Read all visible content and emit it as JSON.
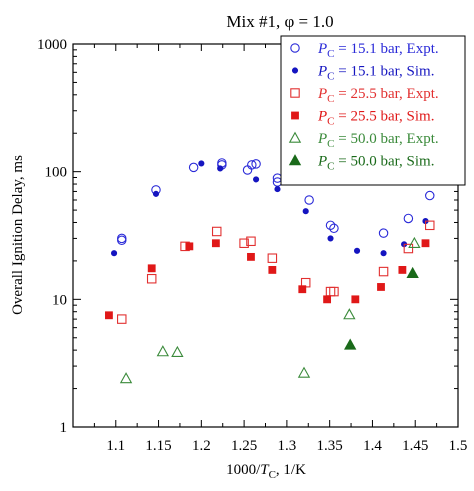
{
  "chart_data": {
    "type": "scatter",
    "title": "Mix #1, φ = 1.0",
    "xlabel": {
      "prefix": "1000/",
      "var": "T",
      "sub": "C",
      "suffix": ", 1/K"
    },
    "ylabel": "Overall Ignition Delay, ms",
    "xlim": [
      1.05,
      1.5
    ],
    "ylim": [
      1,
      1000
    ],
    "yscale": "log",
    "grid": false,
    "legend_position": "top-right",
    "xticks": [
      1.1,
      1.15,
      1.2,
      1.25,
      1.3,
      1.35,
      1.4,
      1.45,
      1.5
    ],
    "xtick_labels": [
      "1.1",
      "1.15",
      "1.2",
      "1.25",
      "1.3",
      "1.35",
      "1.4",
      "1.45",
      "1.5"
    ],
    "yticks": [
      1,
      10,
      100,
      1000
    ],
    "ytick_labels": [
      "1",
      "10",
      "100",
      "1000"
    ],
    "series": [
      {
        "legend": {
          "var": "P",
          "sub": "C",
          "text": " = 15.1 bar, Expt."
        },
        "color": "#2a2ad8",
        "marker": "circle",
        "filled": false,
        "points": [
          [
            1.107,
            30
          ],
          [
            1.107,
            29
          ],
          [
            1.147,
            72
          ],
          [
            1.191,
            108
          ],
          [
            1.224,
            117
          ],
          [
            1.224,
            113
          ],
          [
            1.259,
            113
          ],
          [
            1.264,
            115
          ],
          [
            1.254,
            103
          ],
          [
            1.289,
            89
          ],
          [
            1.289,
            83
          ],
          [
            1.326,
            60
          ],
          [
            1.351,
            38
          ],
          [
            1.355,
            36
          ],
          [
            1.413,
            33
          ],
          [
            1.442,
            43
          ],
          [
            1.467,
            65
          ]
        ]
      },
      {
        "legend": {
          "var": "P",
          "sub": "C",
          "text": " = 15.1 bar, Sim."
        },
        "color": "#1515c0",
        "marker": "circle",
        "filled": true,
        "points": [
          [
            1.098,
            23
          ],
          [
            1.147,
            67
          ],
          [
            1.2,
            116
          ],
          [
            1.222,
            106
          ],
          [
            1.264,
            87
          ],
          [
            1.289,
            73
          ],
          [
            1.322,
            49
          ],
          [
            1.351,
            30
          ],
          [
            1.382,
            24
          ],
          [
            1.413,
            23
          ],
          [
            1.437,
            27
          ],
          [
            1.462,
            41
          ]
        ]
      },
      {
        "legend": {
          "var": "P",
          "sub": "C",
          "text": " = 25.5 bar, Expt."
        },
        "color": "#e23030",
        "marker": "square",
        "filled": false,
        "points": [
          [
            1.107,
            7
          ],
          [
            1.142,
            14.5
          ],
          [
            1.181,
            26
          ],
          [
            1.218,
            34
          ],
          [
            1.25,
            27.5
          ],
          [
            1.258,
            28.5
          ],
          [
            1.283,
            21
          ],
          [
            1.322,
            13.5
          ],
          [
            1.351,
            11.5
          ],
          [
            1.355,
            11.5
          ],
          [
            1.413,
            16.5
          ],
          [
            1.442,
            25
          ],
          [
            1.467,
            38
          ]
        ]
      },
      {
        "legend": {
          "var": "P",
          "sub": "C",
          "text": " = 25.5 bar, Sim."
        },
        "color": "#e01818",
        "marker": "square",
        "filled": true,
        "points": [
          [
            1.092,
            7.5
          ],
          [
            1.142,
            17.5
          ],
          [
            1.186,
            26
          ],
          [
            1.217,
            27.5
          ],
          [
            1.258,
            21.5
          ],
          [
            1.283,
            17
          ],
          [
            1.318,
            12
          ],
          [
            1.347,
            10
          ],
          [
            1.38,
            10
          ],
          [
            1.41,
            12.5
          ],
          [
            1.435,
            17
          ],
          [
            1.462,
            27.5
          ]
        ]
      },
      {
        "legend": {
          "var": "P",
          "sub": "C",
          "text": " = 50.0 bar, Expt."
        },
        "color": "#3a8a3a",
        "marker": "triangle",
        "filled": false,
        "points": [
          [
            1.112,
            2.4
          ],
          [
            1.155,
            3.9
          ],
          [
            1.172,
            3.85
          ],
          [
            1.32,
            2.65
          ],
          [
            1.373,
            7.6
          ],
          [
            1.449,
            27.5
          ]
        ]
      },
      {
        "legend": {
          "var": "P",
          "sub": "C",
          "text": " = 50.0 bar, Sim."
        },
        "color": "#1a6a1a",
        "marker": "triangle",
        "filled": true,
        "points": [
          [
            1.374,
            4.4
          ],
          [
            1.447,
            16
          ]
        ]
      }
    ]
  }
}
